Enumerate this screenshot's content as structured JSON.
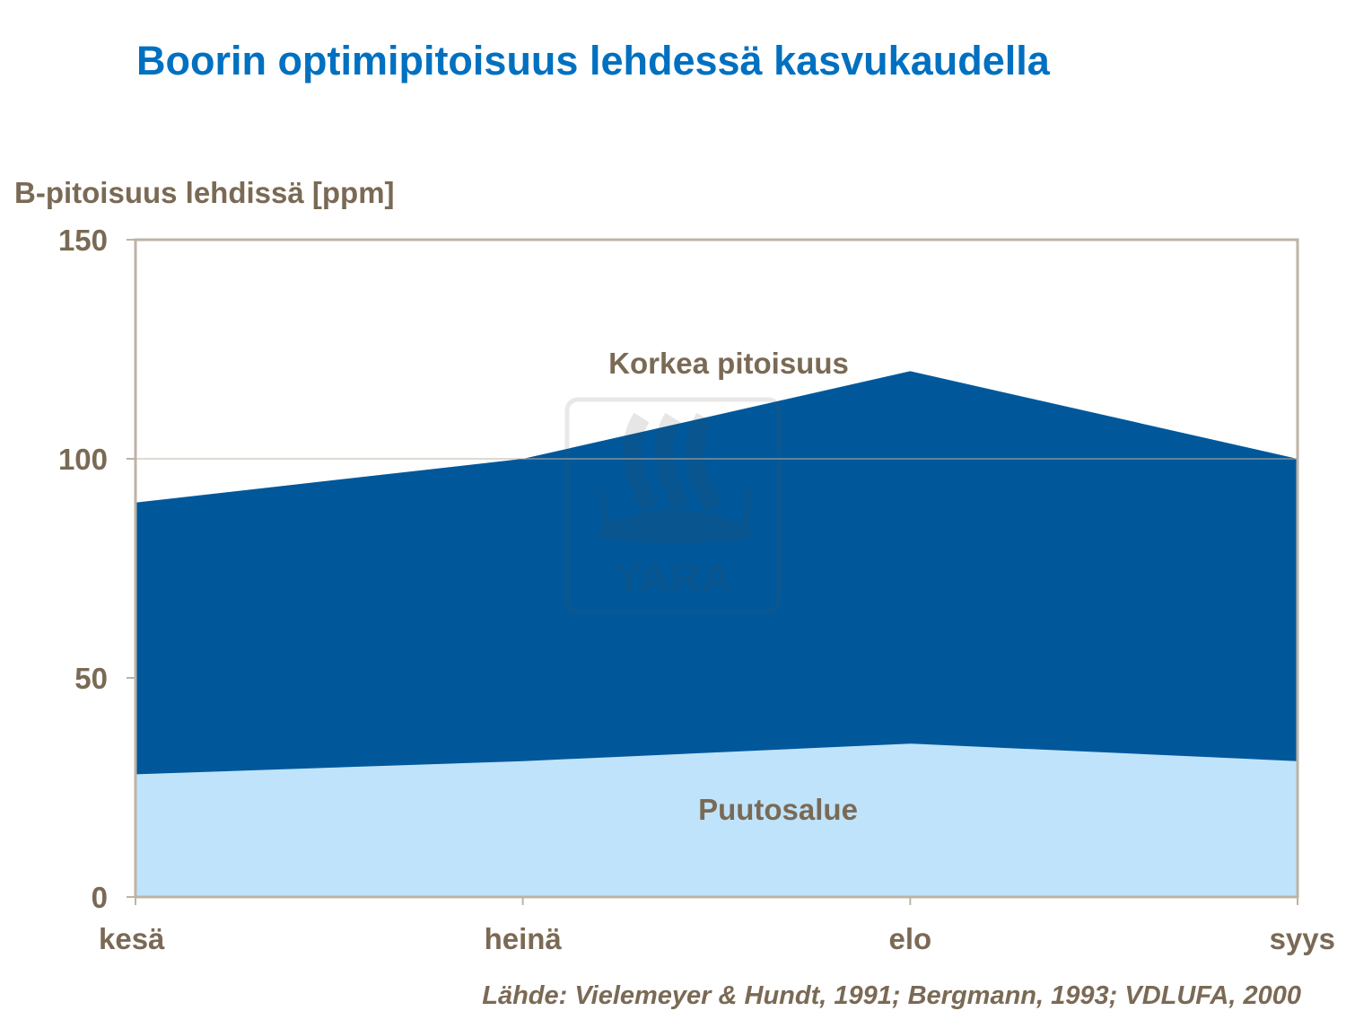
{
  "chart_data": {
    "type": "area",
    "stacked": false,
    "title": "Boorin optimipitoisuus lehdessä kasvukaudella",
    "xlabel": "",
    "ylabel": "B-pitoisuus lehdissä [ppm]",
    "categories": [
      "kesä",
      "heinä",
      "elo",
      "syys"
    ],
    "ylim": [
      0,
      150
    ],
    "yticks": [
      0,
      50,
      100,
      150
    ],
    "grid": true,
    "series": [
      {
        "values": [
          90,
          100,
          120,
          100
        ],
        "color": "#00589B"
      },
      {
        "values": [
          28,
          31,
          35,
          31
        ],
        "color": "#BFE3FB"
      }
    ],
    "annotations": {
      "upper": "Korkea pitoisuus",
      "lower": "Puutosalue"
    },
    "source": "Lähde: Vielemeyer & Hundt, 1991; Bergmann, 1993; VDLUFA, 2000"
  },
  "watermark": {
    "logo_text": "YARA"
  },
  "colors": {
    "title": "#0070C0",
    "text": "#7A6A55",
    "axis": "#BDB3A5"
  }
}
